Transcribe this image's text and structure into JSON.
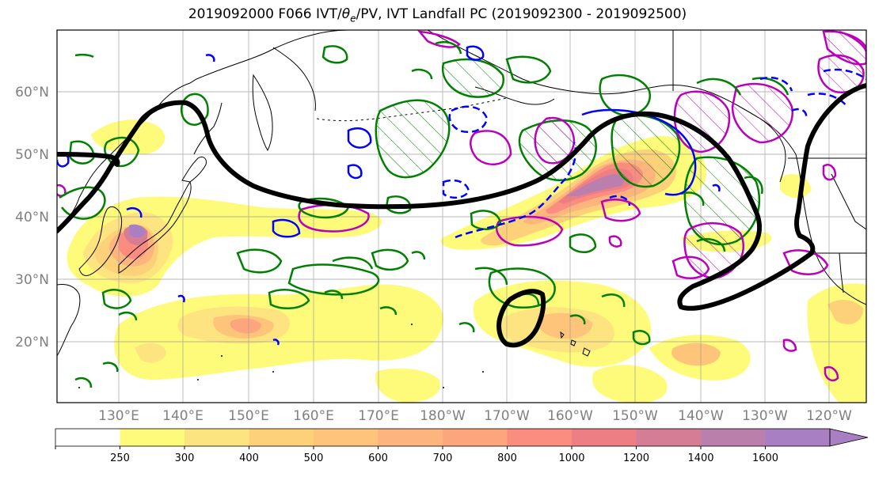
{
  "figure": {
    "title": "2019092000 F066 IVT/θe/PV, IVT Landfall PC (2019092300 - 2019092500)"
  },
  "map": {
    "lat_labels": [
      "60°N",
      "50°N",
      "40°N",
      "30°N",
      "20°N"
    ],
    "lon_labels": [
      "130°E",
      "140°E",
      "150°E",
      "160°E",
      "170°E",
      "180°W",
      "170°W",
      "160°W",
      "150°W",
      "140°W",
      "130°W",
      "120°W"
    ],
    "grid": true,
    "label_color": "#808080"
  },
  "colorbar": {
    "ticks": [
      "250",
      "300",
      "400",
      "500",
      "600",
      "700",
      "800",
      "1000",
      "1200",
      "1400",
      "1600"
    ],
    "bins": [
      {
        "label": "",
        "color": "#ffffff"
      },
      {
        "label": "250-300",
        "color": "#fdfb79"
      },
      {
        "label": "300-400",
        "color": "#fde480"
      },
      {
        "label": "400-500",
        "color": "#fdd17a"
      },
      {
        "label": "500-600",
        "color": "#fdc47a"
      },
      {
        "label": "600-700",
        "color": "#fdb57d"
      },
      {
        "label": "700-800",
        "color": "#fda57c"
      },
      {
        "label": "800-1000",
        "color": "#fb8c80"
      },
      {
        "label": "1000-1200",
        "color": "#ee7e84"
      },
      {
        "label": "1200-1400",
        "color": "#d67d96"
      },
      {
        "label": "1400-1600",
        "color": "#bb7fae"
      },
      {
        "label": "1600+",
        "color": "#a97fc4"
      }
    ],
    "extend": "max"
  },
  "overlays": {
    "pc_contour_color": "#000000",
    "theta_e_color": "#008000",
    "pv_color": "#bb00bb",
    "blue_color": "#0000ff"
  }
}
